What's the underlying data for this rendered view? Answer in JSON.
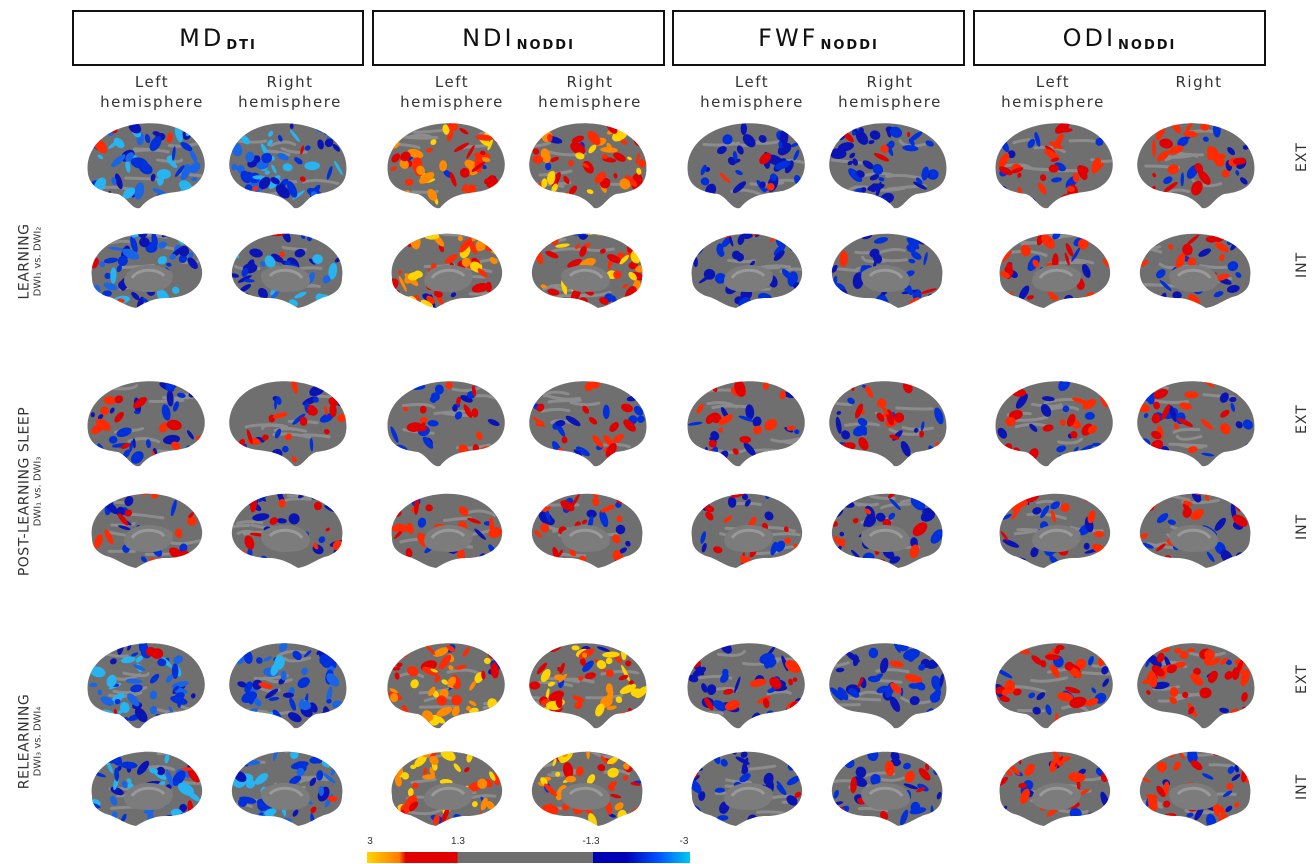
{
  "headers": [
    {
      "main": "MD",
      "sub": "DTI"
    },
    {
      "main": "NDI",
      "sub": "NODDI"
    },
    {
      "main": "FWF",
      "sub": "NODDI"
    },
    {
      "main": "ODI",
      "sub": "NODDI"
    }
  ],
  "hemispheres": [
    {
      "line1": "Left",
      "line2": "hemisphere"
    },
    {
      "line1": "Right",
      "line2": "hemisphere"
    },
    {
      "line1": "Left",
      "line2": "hemisphere"
    },
    {
      "line1": "Right",
      "line2": "hemisphere"
    },
    {
      "line1": "Left",
      "line2": "hemisphere"
    },
    {
      "line1": "Right",
      "line2": "hemisphere"
    },
    {
      "line1": "Left",
      "line2": "hemisphere"
    },
    {
      "line1": "Right",
      "line2": ""
    }
  ],
  "rows": [
    {
      "main": "LEARNING",
      "sub": "DWI₁ vs. DWI₂"
    },
    {
      "main": "POST-LEARNING SLEEP",
      "sub": "DWI₁ vs. DWI₃"
    },
    {
      "main": "RELEARNING",
      "sub": "DWI₃ vs. DWI₄"
    }
  ],
  "views": [
    "EXT",
    "INT"
  ],
  "colorbar": {
    "ticks": [
      "3",
      "1.3",
      "-1.3",
      "-3"
    ],
    "colors": [
      "#ffd400",
      "#ff7a00",
      "#e00000",
      "#6e6e6e",
      "#0000b4",
      "#0050ff",
      "#00c8f0"
    ]
  },
  "palette": {
    "cortex": "#6f6f6f",
    "sulcus": "#8c8c8c",
    "pos": [
      "#e00000",
      "#ff2a00",
      "#ff8a00",
      "#ffd400"
    ],
    "neg": [
      "#0a14b4",
      "#0030dc",
      "#1a64e6",
      "#28b4f0"
    ]
  },
  "panels": {
    "pattern": [
      [
        "neg-strong",
        "neg-strong",
        "pos-strong",
        "pos-strong",
        "neg",
        "neg",
        "mix-pos",
        "mix-pos"
      ],
      [
        "neg-strong",
        "neg-strong",
        "pos-strong",
        "pos-strong",
        "neg",
        "neg",
        "mix-pos",
        "mix"
      ],
      [
        "mix-neg",
        "mix",
        "mix",
        "mix",
        "mix",
        "mix",
        "mix",
        "mix"
      ],
      [
        "mix",
        "mix-neg",
        "mix",
        "mix-pos",
        "mix",
        "mix-neg",
        "mix",
        "mix"
      ],
      [
        "neg-strong",
        "neg-strong",
        "pos-strong",
        "pos-strong",
        "mix-neg",
        "neg",
        "mix-pos",
        "pos"
      ],
      [
        "neg-strong",
        "neg-strong",
        "pos-strong",
        "pos-strong",
        "neg",
        "mix-neg",
        "mix-pos",
        "mix-pos"
      ]
    ]
  }
}
